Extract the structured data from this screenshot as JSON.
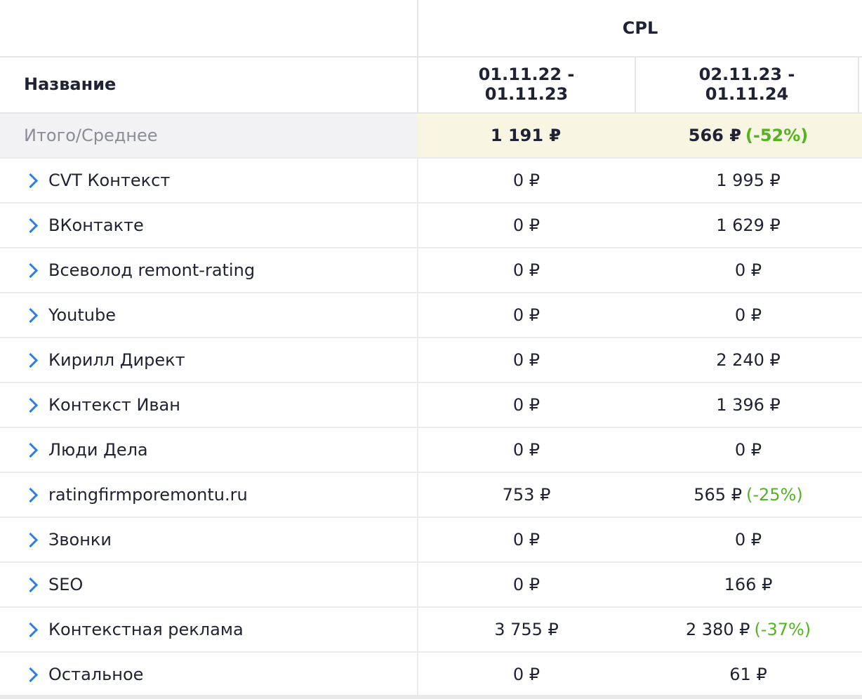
{
  "header": {
    "group_title": "CPL",
    "name_column": "Название",
    "period1_line1": "01.11.22 -",
    "period1_line2": "01.11.23",
    "period2_line1": "02.11.23 -",
    "period2_line2": "01.11.24"
  },
  "total": {
    "label": "Итого/Среднее",
    "period1": "1 191 ₽",
    "period2": "566 ₽",
    "period2_delta": "(-52%)"
  },
  "rows": [
    {
      "name": "CVT Контекст",
      "period1": "0 ₽",
      "period2": "1 995 ₽",
      "delta": ""
    },
    {
      "name": "ВКонтакте",
      "period1": "0 ₽",
      "period2": "1 629 ₽",
      "delta": ""
    },
    {
      "name": "Всеволод remont-rating",
      "period1": "0 ₽",
      "period2": "0 ₽",
      "delta": ""
    },
    {
      "name": "Youtube",
      "period1": "0 ₽",
      "period2": "0 ₽",
      "delta": ""
    },
    {
      "name": "Кирилл Директ",
      "period1": "0 ₽",
      "period2": "2 240 ₽",
      "delta": ""
    },
    {
      "name": "Контекст Иван",
      "period1": "0 ₽",
      "period2": "1 396 ₽",
      "delta": ""
    },
    {
      "name": "Люди Дела",
      "period1": "0 ₽",
      "period2": "0 ₽",
      "delta": ""
    },
    {
      "name": "ratingfirmporemontu.ru",
      "period1": "753 ₽",
      "period2": "565 ₽",
      "delta": "(-25%)"
    },
    {
      "name": "Звонки",
      "period1": "0 ₽",
      "period2": "0 ₽",
      "delta": ""
    },
    {
      "name": "SEO",
      "period1": "0 ₽",
      "period2": "166 ₽",
      "delta": ""
    },
    {
      "name": "Контекстная реклама",
      "period1": "3 755 ₽",
      "period2": "2 380 ₽",
      "delta": "(-37%)"
    },
    {
      "name": "Остальное",
      "period1": "0 ₽",
      "period2": "61 ₽",
      "delta": ""
    }
  ],
  "icons": {
    "row_expand": "chevron-right-icon"
  },
  "colors": {
    "accent": "#2f7ee0",
    "delta_positive": "#52b41f",
    "total_bg": "#f8f5e3"
  }
}
